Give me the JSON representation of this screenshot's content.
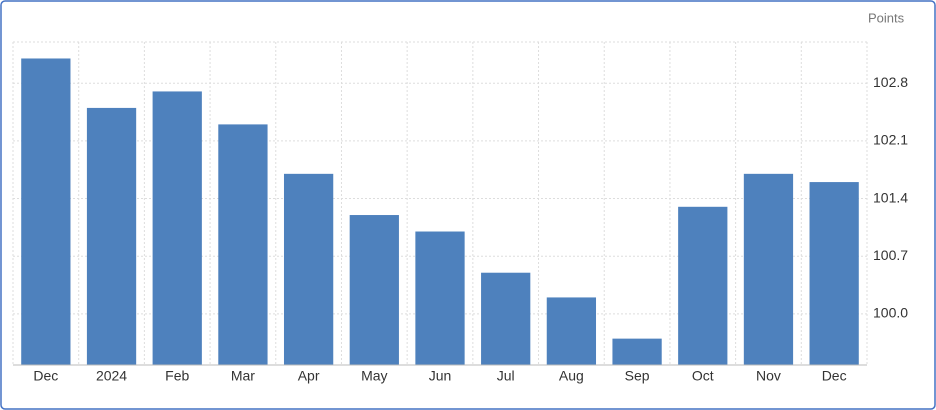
{
  "chart_data": {
    "type": "bar",
    "y_axis_label": "Points",
    "categories": [
      "Dec",
      "2024",
      "Feb",
      "Mar",
      "Apr",
      "May",
      "Jun",
      "Jul",
      "Aug",
      "Sep",
      "Oct",
      "Nov",
      "Dec"
    ],
    "values": [
      103.1,
      102.5,
      102.7,
      102.3,
      101.7,
      101.2,
      101.0,
      100.5,
      100.2,
      99.7,
      101.3,
      101.7,
      101.6
    ],
    "color": "#4e81bd",
    "ylim": [
      99.38,
      103.3
    ],
    "yticks": [
      {
        "value": 100,
        "label": "100.0"
      },
      100.7,
      101.4,
      102.1,
      102.8
    ],
    "grid": true
  }
}
